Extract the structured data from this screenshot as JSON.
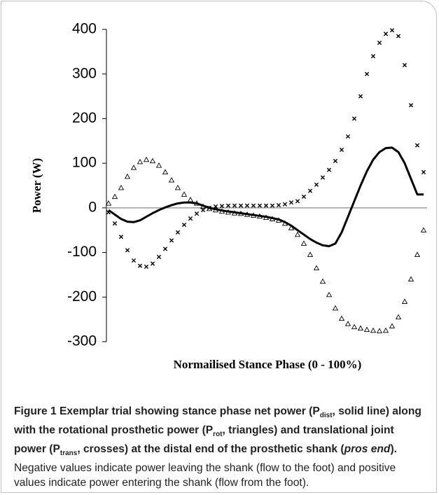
{
  "chart_data": {
    "type": "line",
    "y_label": "Power (W)",
    "x_label": "Normailised Stance Phase (0 - 100%)",
    "xlim": [
      0,
      100
    ],
    "ylim": [
      -300,
      400
    ],
    "yticks": [
      -300,
      -200,
      -100,
      0,
      100,
      200,
      300,
      400
    ],
    "x": [
      0,
      2,
      4,
      6,
      8,
      10,
      12,
      14,
      16,
      18,
      20,
      22,
      24,
      26,
      28,
      30,
      32,
      34,
      36,
      38,
      40,
      42,
      44,
      46,
      48,
      50,
      52,
      54,
      56,
      58,
      60,
      62,
      64,
      66,
      68,
      70,
      72,
      74,
      76,
      78,
      80,
      82,
      84,
      86,
      88,
      90,
      92,
      94,
      96,
      98,
      100
    ],
    "series": [
      {
        "marker": "line",
        "color": "#000000",
        "values": [
          -5,
          -15,
          -25,
          -31,
          -32,
          -28,
          -20,
          -12,
          -5,
          1,
          6,
          10,
          12,
          12,
          10,
          5,
          0,
          -3,
          -6,
          -8,
          -10,
          -12,
          -14,
          -16,
          -18,
          -20,
          -23,
          -26,
          -32,
          -40,
          -50,
          -60,
          -70,
          -78,
          -84,
          -86,
          -80,
          -55,
          -20,
          15,
          50,
          82,
          108,
          125,
          134,
          135,
          125,
          100,
          65,
          30,
          30
        ]
      },
      {
        "marker": "triangle",
        "color": "#000000",
        "values": [
          10,
          25,
          45,
          70,
          90,
          103,
          108,
          105,
          95,
          80,
          62,
          45,
          30,
          18,
          10,
          3,
          -2,
          -5,
          -8,
          -10,
          -12,
          -13,
          -15,
          -17,
          -19,
          -22,
          -25,
          -28,
          -35,
          -45,
          -60,
          -80,
          -105,
          -135,
          -165,
          -195,
          -225,
          -248,
          -260,
          -267,
          -270,
          -273,
          -275,
          -276,
          -275,
          -265,
          -245,
          -210,
          -160,
          -105,
          -50
        ]
      },
      {
        "marker": "cross",
        "color": "#000000",
        "values": [
          -10,
          -35,
          -65,
          -95,
          -118,
          -130,
          -132,
          -125,
          -110,
          -92,
          -73,
          -55,
          -38,
          -24,
          -13,
          -5,
          0,
          3,
          4,
          5,
          5,
          5,
          5,
          5,
          5,
          5,
          5,
          6,
          8,
          12,
          15,
          25,
          38,
          52,
          68,
          85,
          105,
          130,
          160,
          200,
          250,
          300,
          340,
          370,
          390,
          398,
          385,
          320,
          230,
          140,
          80
        ]
      }
    ]
  },
  "caption": [
    "Figure 1",
    " Exemplar trial showing stance phase net power (P",
    "dist",
    ", solid line) along with the rotational prosthetic power (P",
    "rot",
    ", triangles) and translational joint power (P",
    "trans",
    ", crosses) at the distal end of the prosthetic shank (",
    "pros end",
    ").",
    " Negative values indicate power leaving the shank (flow to the foot) and positive values indicate power entering the shank (flow from the foot)."
  ]
}
